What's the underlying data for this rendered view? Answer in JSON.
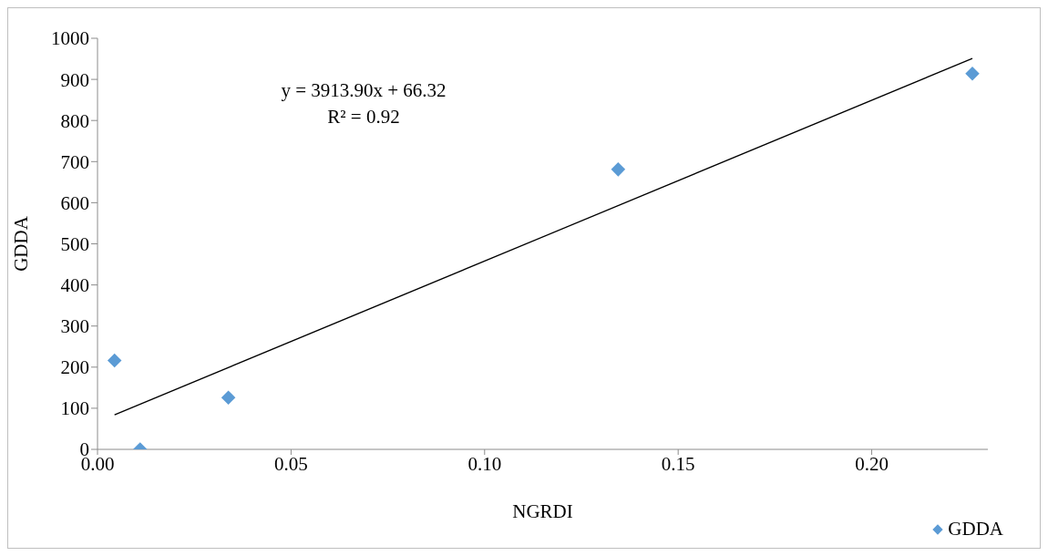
{
  "chart_data": {
    "type": "scatter",
    "xlabel": "NGRDI",
    "ylabel": "GDDA",
    "annotations": [
      "y = 3913.90x + 66.32",
      "R² = 0.92"
    ],
    "xlim": [
      0,
      0.23
    ],
    "xticks": [
      {
        "value": 0,
        "label": "0.00"
      },
      {
        "value": 0.05,
        "label": "0.05"
      },
      {
        "value": 0.1,
        "label": "0.10"
      },
      {
        "value": 0.15,
        "label": "0.15"
      },
      {
        "value": 0.2,
        "label": "0.20"
      }
    ],
    "ylim": [
      0,
      1000
    ],
    "yticks": [
      0,
      100,
      200,
      300,
      400,
      500,
      600,
      700,
      800,
      900,
      1000
    ],
    "marker": "diamond",
    "legend": "bottom right",
    "series": [
      {
        "name": "GDDA",
        "color": "#5b9bd5",
        "x": [
          0.0044,
          0.011,
          0.0338,
          0.1345,
          0.226
        ],
        "values": [
          216,
          0,
          126,
          681,
          914
        ]
      },
      {
        "type": "line",
        "marker": "none",
        "color": "#000000",
        "x": [
          0.0044,
          0.226
        ],
        "values": [
          84,
          951
        ]
      }
    ]
  }
}
